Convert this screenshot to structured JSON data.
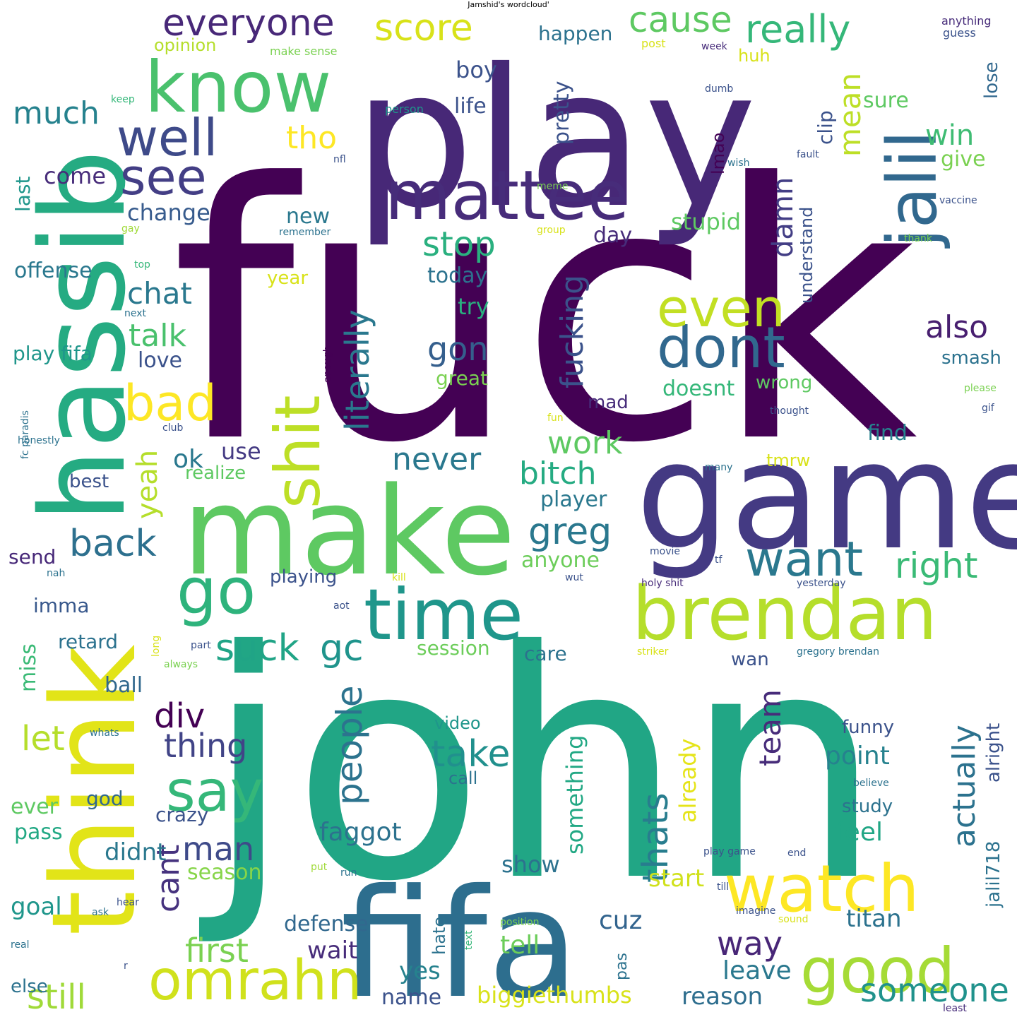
{
  "title": "Jamshid's wordcloud'",
  "background_color": "#ffffff",
  "palette": "viridis",
  "words": [
    {
      "text": "fuck",
      "color": "#440154"
    },
    {
      "text": "john",
      "color": "#21a685"
    },
    {
      "text": "play",
      "color": "#472877"
    },
    {
      "text": "game",
      "color": "#443a83"
    },
    {
      "text": "make",
      "color": "#5ec962"
    },
    {
      "text": "think",
      "color": "#e2e418"
    },
    {
      "text": "hassib",
      "color": "#25ab82"
    },
    {
      "text": "fifa",
      "color": "#2d6e8e"
    },
    {
      "text": "brendan",
      "color": "#b5de2b"
    },
    {
      "text": "time",
      "color": "#1f968b"
    },
    {
      "text": "know",
      "color": "#4ac16d"
    },
    {
      "text": "mattee",
      "color": "#472c7a"
    },
    {
      "text": "jalil",
      "color": "#31688e"
    },
    {
      "text": "watch",
      "color": "#fde725"
    },
    {
      "text": "good",
      "color": "#a5db36"
    },
    {
      "text": "shit",
      "color": "#bddf26"
    },
    {
      "text": "go",
      "color": "#2eb37c"
    },
    {
      "text": "omrahn",
      "color": "#d0e11c"
    },
    {
      "text": "say",
      "color": "#35b779"
    },
    {
      "text": "dont",
      "color": "#31688e"
    },
    {
      "text": "even",
      "color": "#c2df23"
    },
    {
      "text": "well",
      "color": "#3e4a89"
    },
    {
      "text": "see",
      "color": "#433e85"
    },
    {
      "text": "want",
      "color": "#2a788e"
    },
    {
      "text": "bad",
      "color": "#fde725"
    },
    {
      "text": "everyone",
      "color": "#482878"
    },
    {
      "text": "really",
      "color": "#35b779"
    },
    {
      "text": "cause",
      "color": "#5ec962"
    },
    {
      "text": "score",
      "color": "#d8e219"
    },
    {
      "text": "suck",
      "color": "#20a486"
    },
    {
      "text": "gc",
      "color": "#1f948c"
    },
    {
      "text": "greg",
      "color": "#2a788e"
    },
    {
      "text": "right",
      "color": "#3aba76"
    },
    {
      "text": "back",
      "color": "#2d708e"
    },
    {
      "text": "people",
      "color": "#2c738e"
    },
    {
      "text": "take",
      "color": "#21908d"
    },
    {
      "text": "literally",
      "color": "#2a788e"
    },
    {
      "text": "fucking",
      "color": "#3b528b"
    },
    {
      "text": "stop",
      "color": "#2ab07f"
    },
    {
      "text": "thats",
      "color": "#287d8e"
    },
    {
      "text": "actually",
      "color": "#2c728e"
    },
    {
      "text": "someone",
      "color": "#20928c"
    },
    {
      "text": "div",
      "color": "#440154"
    },
    {
      "text": "thing",
      "color": "#414487"
    },
    {
      "text": "man",
      "color": "#3e4a89"
    },
    {
      "text": "still",
      "color": "#a0da39"
    },
    {
      "text": "first",
      "color": "#7ad151"
    },
    {
      "text": "cant",
      "color": "#46327e"
    },
    {
      "text": "way",
      "color": "#482677"
    },
    {
      "text": "much",
      "color": "#26828e"
    },
    {
      "text": "tho",
      "color": "#fde725"
    },
    {
      "text": "talk",
      "color": "#4ac16d"
    },
    {
      "text": "chat",
      "color": "#2a788e"
    },
    {
      "text": "gon",
      "color": "#355f8d"
    },
    {
      "text": "also",
      "color": "#481f70"
    },
    {
      "text": "mean",
      "color": "#bddf26"
    },
    {
      "text": "win",
      "color": "#3fbc73"
    },
    {
      "text": "damn",
      "color": "#433e85"
    },
    {
      "text": "work",
      "color": "#5ec962"
    },
    {
      "text": "never",
      "color": "#2a788e"
    },
    {
      "text": "bitch",
      "color": "#25ab82"
    },
    {
      "text": "yeah",
      "color": "#b5de2b"
    },
    {
      "text": "ok",
      "color": "#2a788e"
    },
    {
      "text": "let",
      "color": "#b5de2b"
    },
    {
      "text": "team",
      "color": "#472c7a"
    },
    {
      "text": "already",
      "color": "#e5e419"
    },
    {
      "text": "something",
      "color": "#22a884"
    },
    {
      "text": "faggot",
      "color": "#2c728e"
    },
    {
      "text": "point",
      "color": "#26828e"
    },
    {
      "text": "feel",
      "color": "#21a685"
    },
    {
      "text": "titan",
      "color": "#2c728e"
    },
    {
      "text": "cuz",
      "color": "#32648e"
    },
    {
      "text": "leave",
      "color": "#2a788e"
    },
    {
      "text": "reason",
      "color": "#2e6e8e"
    },
    {
      "text": "biggiethumbs",
      "color": "#d8e219"
    },
    {
      "text": "name",
      "color": "#3b528b"
    },
    {
      "text": "yes",
      "color": "#26828e"
    },
    {
      "text": "tell",
      "color": "#6ccd5a"
    },
    {
      "text": "wait",
      "color": "#472c7a"
    },
    {
      "text": "defense",
      "color": "#31688e"
    },
    {
      "text": "show",
      "color": "#2c728e"
    },
    {
      "text": "start",
      "color": "#d0e11c"
    },
    {
      "text": "didnt",
      "color": "#2a788e"
    },
    {
      "text": "season",
      "color": "#86d549"
    },
    {
      "text": "goal",
      "color": "#1f968b"
    },
    {
      "text": "pass",
      "color": "#22a884"
    },
    {
      "text": "ever",
      "color": "#5ec962"
    },
    {
      "text": "god",
      "color": "#31688e"
    },
    {
      "text": "crazy",
      "color": "#3b528b"
    },
    {
      "text": "ball",
      "color": "#31688e"
    },
    {
      "text": "retard",
      "color": "#2c728e"
    },
    {
      "text": "miss",
      "color": "#3aba76"
    },
    {
      "text": "imma",
      "color": "#38588c"
    },
    {
      "text": "send",
      "color": "#472878"
    },
    {
      "text": "best",
      "color": "#3b528b"
    },
    {
      "text": "use",
      "color": "#443a83"
    },
    {
      "text": "realize",
      "color": "#5ec962"
    },
    {
      "text": "love",
      "color": "#3b528b"
    },
    {
      "text": "play fifa",
      "color": "#1f968b"
    },
    {
      "text": "offense",
      "color": "#2a788e"
    },
    {
      "text": "change",
      "color": "#375b8d"
    },
    {
      "text": "come",
      "color": "#472c7a"
    },
    {
      "text": "last",
      "color": "#1f968b"
    },
    {
      "text": "new",
      "color": "#2a788e"
    },
    {
      "text": "day",
      "color": "#472c7a"
    },
    {
      "text": "today",
      "color": "#2c728e"
    },
    {
      "text": "try",
      "color": "#2ab07f"
    },
    {
      "text": "year",
      "color": "#d8e219"
    },
    {
      "text": "life",
      "color": "#3b528b"
    },
    {
      "text": "boy",
      "color": "#3b528b"
    },
    {
      "text": "happen",
      "color": "#2c728e"
    },
    {
      "text": "pretty",
      "color": "#3b528b"
    },
    {
      "text": "opinion",
      "color": "#b5de2b"
    },
    {
      "text": "make sense",
      "color": "#7ad151"
    },
    {
      "text": "keep",
      "color": "#35b779"
    },
    {
      "text": "person",
      "color": "#1f968b"
    },
    {
      "text": "huh",
      "color": "#d8e219"
    },
    {
      "text": "sure",
      "color": "#5ec962"
    },
    {
      "text": "give",
      "color": "#7ad151"
    },
    {
      "text": "lose",
      "color": "#31688e"
    },
    {
      "text": "clip",
      "color": "#3b528b"
    },
    {
      "text": "stupid",
      "color": "#5ec962"
    },
    {
      "text": "lmao",
      "color": "#440154"
    },
    {
      "text": "understand",
      "color": "#3b528b"
    },
    {
      "text": "doesnt",
      "color": "#35b779"
    },
    {
      "text": "wrong",
      "color": "#5ec962"
    },
    {
      "text": "great",
      "color": "#7ad151"
    },
    {
      "text": "mad",
      "color": "#472c7a"
    },
    {
      "text": "smash",
      "color": "#2c728e"
    },
    {
      "text": "find",
      "color": "#26828e"
    },
    {
      "text": "tmrw",
      "color": "#d8e219"
    },
    {
      "text": "player",
      "color": "#2a788e"
    },
    {
      "text": "anyone",
      "color": "#6ccd5a"
    },
    {
      "text": "playing",
      "color": "#3b528b"
    },
    {
      "text": "session",
      "color": "#6ccd5a"
    },
    {
      "text": "care",
      "color": "#2c728e"
    },
    {
      "text": "wan",
      "color": "#3b528b"
    },
    {
      "text": "video",
      "color": "#1f968b"
    },
    {
      "text": "call",
      "color": "#2c728e"
    },
    {
      "text": "funny",
      "color": "#3b528b"
    },
    {
      "text": "study",
      "color": "#2c728e"
    },
    {
      "text": "alright",
      "color": "#3b528b"
    },
    {
      "text": "jalil718",
      "color": "#2c728e"
    },
    {
      "text": "anything",
      "color": "#472c7a"
    },
    {
      "text": "guess",
      "color": "#3b528b"
    },
    {
      "text": "post",
      "color": "#d8e219"
    },
    {
      "text": "week",
      "color": "#472c7a"
    },
    {
      "text": "dumb",
      "color": "#3b528b"
    },
    {
      "text": "fault",
      "color": "#3b528b"
    },
    {
      "text": "wish",
      "color": "#2c728e"
    },
    {
      "text": "meme",
      "color": "#7ad151"
    },
    {
      "text": "vaccine",
      "color": "#3b528b"
    },
    {
      "text": "thank",
      "color": "#7ad151"
    },
    {
      "text": "nfl",
      "color": "#3b528b"
    },
    {
      "text": "gay",
      "color": "#a0da39"
    },
    {
      "text": "remember",
      "color": "#2c728e"
    },
    {
      "text": "group",
      "color": "#d8e219"
    },
    {
      "text": "top",
      "color": "#35b779"
    },
    {
      "text": "next",
      "color": "#2c728e"
    },
    {
      "text": "enough",
      "color": "#440154"
    },
    {
      "text": "fc paradis",
      "color": "#2c728e"
    },
    {
      "text": "honestly",
      "color": "#2c728e"
    },
    {
      "text": "club",
      "color": "#3b528b"
    },
    {
      "text": "fun",
      "color": "#d8e219"
    },
    {
      "text": "thought",
      "color": "#3b528b"
    },
    {
      "text": "please",
      "color": "#7ad151"
    },
    {
      "text": "gif",
      "color": "#3b528b"
    },
    {
      "text": "many",
      "color": "#2c728e"
    },
    {
      "text": "movie",
      "color": "#3b528b"
    },
    {
      "text": "tf",
      "color": "#3b528b"
    },
    {
      "text": "nah",
      "color": "#2c728e"
    },
    {
      "text": "kill",
      "color": "#d8e219"
    },
    {
      "text": "wut",
      "color": "#3b528b"
    },
    {
      "text": "holy shit",
      "color": "#472c7a"
    },
    {
      "text": "yesterday",
      "color": "#3b528b"
    },
    {
      "text": "aot",
      "color": "#3b528b"
    },
    {
      "text": "part",
      "color": "#3b528b"
    },
    {
      "text": "long",
      "color": "#d8e219"
    },
    {
      "text": "always",
      "color": "#7ad151"
    },
    {
      "text": "striker",
      "color": "#d8e219"
    },
    {
      "text": "gregory brendan",
      "color": "#2c728e"
    },
    {
      "text": "whats",
      "color": "#2c728e"
    },
    {
      "text": "believe",
      "color": "#2c728e"
    },
    {
      "text": "play game",
      "color": "#3b528b"
    },
    {
      "text": "end",
      "color": "#3b528b"
    },
    {
      "text": "put",
      "color": "#a0da39"
    },
    {
      "text": "run",
      "color": "#2c728e"
    },
    {
      "text": "till",
      "color": "#3b528b"
    },
    {
      "text": "hear",
      "color": "#3b528b"
    },
    {
      "text": "ask",
      "color": "#2c728e"
    },
    {
      "text": "imagine",
      "color": "#3b528b"
    },
    {
      "text": "sound",
      "color": "#d8e219"
    },
    {
      "text": "position",
      "color": "#7ad151"
    },
    {
      "text": "text",
      "color": "#35b779"
    },
    {
      "text": "hate",
      "color": "#2c728e"
    },
    {
      "text": "pas",
      "color": "#2c728e"
    },
    {
      "text": "real",
      "color": "#2c728e"
    },
    {
      "text": "else",
      "color": "#2c728e"
    },
    {
      "text": "r",
      "color": "#3b528b"
    },
    {
      "text": "least",
      "color": "#472c7a"
    }
  ]
}
